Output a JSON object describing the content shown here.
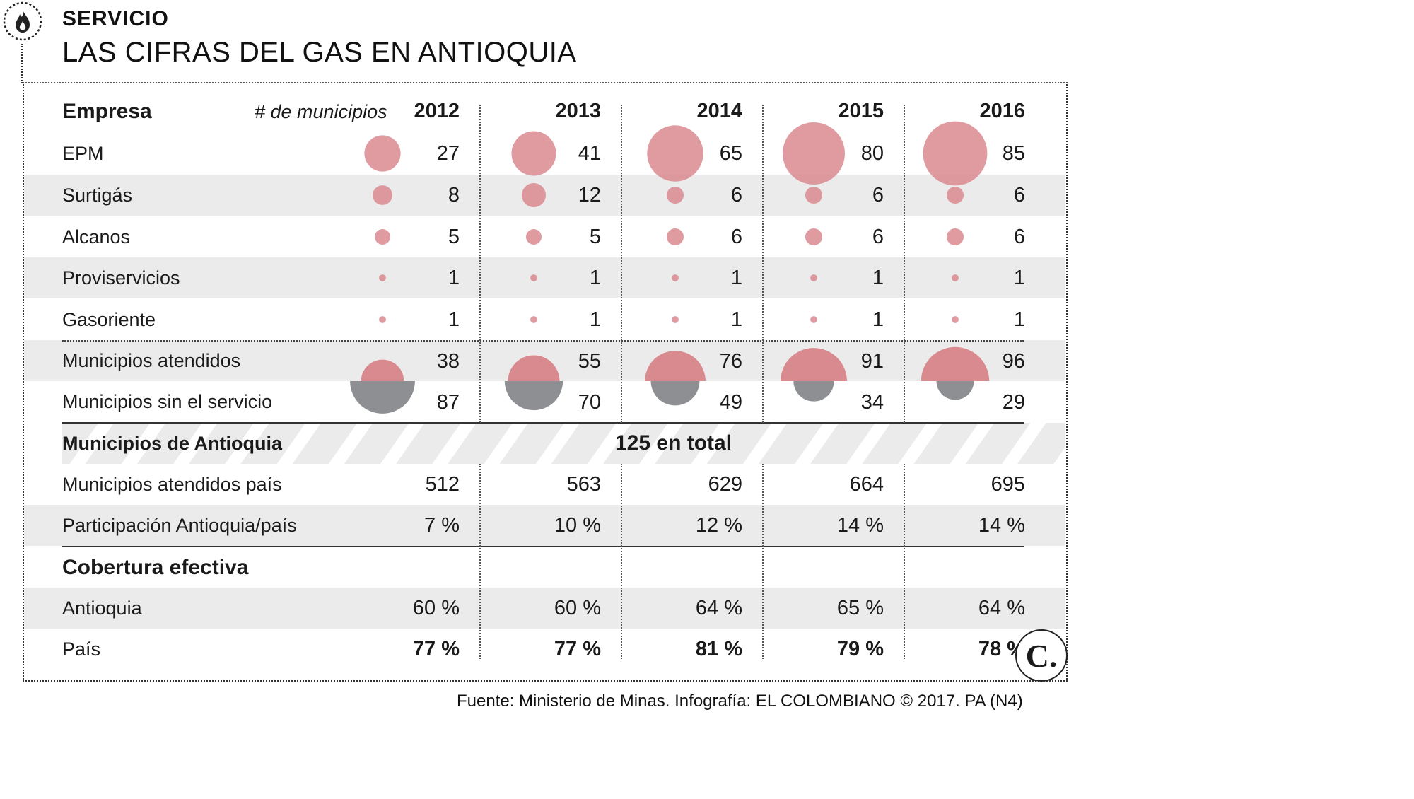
{
  "header": {
    "section": "SERVICIO",
    "title": "LAS CIFRAS DEL GAS EN ANTIOQUIA"
  },
  "table": {
    "col_company": "Empresa",
    "col_municipios": "# de municipios",
    "years": [
      "2012",
      "2013",
      "2014",
      "2015",
      "2016"
    ]
  },
  "chart_data": {
    "type": "table",
    "title": "LAS CIFRAS DEL GAS EN ANTIOQUIA",
    "unit": "# de municipios",
    "years": [
      "2012",
      "2013",
      "2014",
      "2015",
      "2016"
    ],
    "companies": [
      {
        "name": "EPM",
        "values": [
          27,
          41,
          65,
          80,
          85
        ]
      },
      {
        "name": "Surtigás",
        "values": [
          8,
          12,
          6,
          6,
          6
        ]
      },
      {
        "name": "Alcanos",
        "values": [
          5,
          5,
          6,
          6,
          6
        ]
      },
      {
        "name": "Proviservicios",
        "values": [
          1,
          1,
          1,
          1,
          1
        ]
      },
      {
        "name": "Gasoriente",
        "values": [
          1,
          1,
          1,
          1,
          1
        ]
      }
    ],
    "served": {
      "name": "Municipios atendidos",
      "values": [
        38,
        55,
        76,
        91,
        96
      ]
    },
    "unserved": {
      "name": "Municipios sin el servicio",
      "values": [
        87,
        70,
        49,
        34,
        29
      ]
    },
    "antioquia_total": {
      "name": "Municipios de Antioquia",
      "text": "125 en total"
    },
    "country_served": {
      "name": "Municipios atendidos país",
      "values": [
        "512",
        "563",
        "629",
        "664",
        "695"
      ]
    },
    "share": {
      "name": "Participación Antioquia/país",
      "values": [
        "7 %",
        "10 %",
        "12 %",
        "14 %",
        "14 %"
      ]
    },
    "coverage": {
      "name": "Cobertura efectiva",
      "rows": [
        {
          "name": "Antioquia",
          "values": [
            "60 %",
            "60 %",
            "64 %",
            "65 %",
            "64 %"
          ]
        },
        {
          "name": "País",
          "values": [
            "77 %",
            "77 %",
            "81 %",
            "79 %",
            "78 %"
          ]
        }
      ]
    },
    "colors": {
      "served": "#d98a8f",
      "unserved": "#8e8f93",
      "band": "#ebebeb"
    }
  },
  "footer": {
    "source": "Fuente: Ministerio de Minas. Infografía: EL COLOMBIANO © 2017. PA (N4)",
    "logo_letter": "C."
  }
}
